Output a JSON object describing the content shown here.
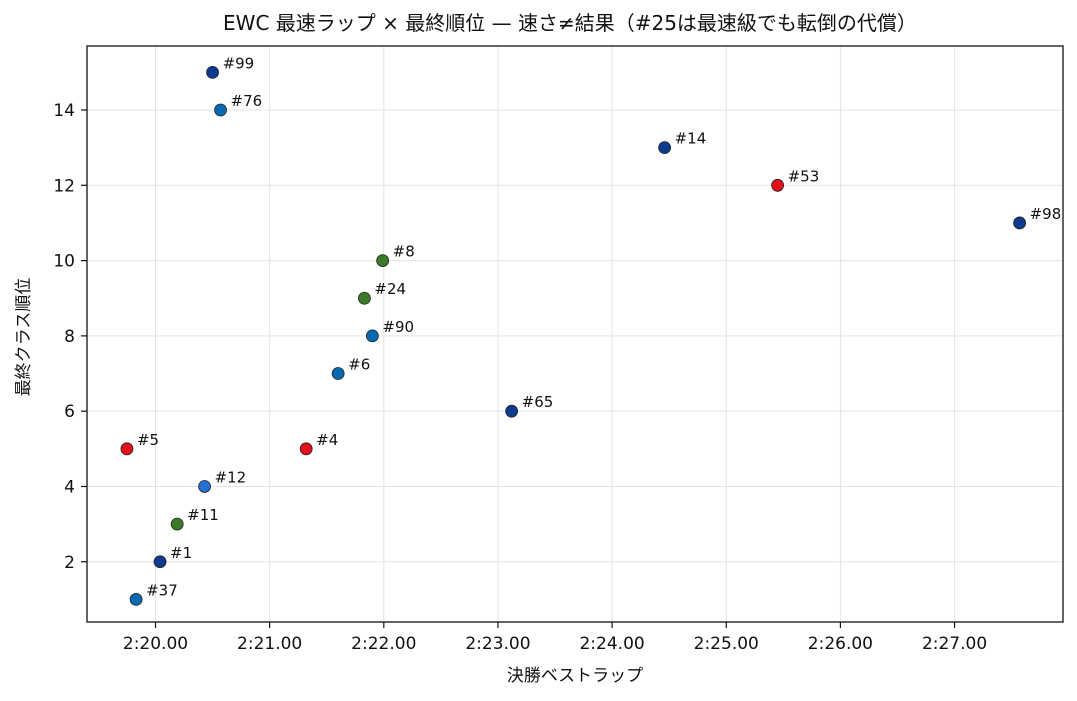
{
  "chart_data": {
    "type": "scatter",
    "title": "EWC 最速ラップ × 最終順位 — 速さ≠結果（#25は最速級でも転倒の代償）",
    "xlabel": "決勝ベストラップ",
    "ylabel": "最終クラス順位",
    "x_unit": "seconds (lap time m:ss.00)",
    "xlim": [
      139.4,
      147.95
    ],
    "ylim": [
      15.7,
      0.4
    ],
    "y_inverted": true,
    "x_ticks": [
      140,
      141,
      142,
      143,
      144,
      145,
      146,
      147
    ],
    "x_tick_labels": [
      "2:20.00",
      "2:21.00",
      "2:22.00",
      "2:23.00",
      "2:24.00",
      "2:25.00",
      "2:26.00",
      "2:27.00"
    ],
    "y_ticks": [
      2,
      4,
      6,
      8,
      10,
      12,
      14
    ],
    "y_tick_labels": [
      "2",
      "4",
      "6",
      "8",
      "10",
      "12",
      "14"
    ],
    "grid": true,
    "points": [
      {
        "label": "#37",
        "x": 139.83,
        "y": 1,
        "color": "#0868b0"
      },
      {
        "label": "#1",
        "x": 140.04,
        "y": 2,
        "color": "#0d3a8c"
      },
      {
        "label": "#11",
        "x": 140.19,
        "y": 3,
        "color": "#3a7a2a"
      },
      {
        "label": "#12",
        "x": 140.43,
        "y": 4,
        "color": "#2470d0"
      },
      {
        "label": "#5",
        "x": 139.75,
        "y": 5,
        "color": "#e3101c"
      },
      {
        "label": "#4",
        "x": 141.32,
        "y": 5,
        "color": "#e3101c"
      },
      {
        "label": "#65",
        "x": 143.12,
        "y": 6,
        "color": "#0d3a8c"
      },
      {
        "label": "#6",
        "x": 141.6,
        "y": 7,
        "color": "#0868b0"
      },
      {
        "label": "#90",
        "x": 141.9,
        "y": 8,
        "color": "#0868b0"
      },
      {
        "label": "#24",
        "x": 141.83,
        "y": 9,
        "color": "#3a7a2a"
      },
      {
        "label": "#8",
        "x": 141.99,
        "y": 10,
        "color": "#3a7a2a"
      },
      {
        "label": "#98",
        "x": 147.57,
        "y": 11,
        "color": "#0d3a8c"
      },
      {
        "label": "#53",
        "x": 145.45,
        "y": 12,
        "color": "#e3101c"
      },
      {
        "label": "#14",
        "x": 144.46,
        "y": 13,
        "color": "#0d3a8c"
      },
      {
        "label": "#76",
        "x": 140.57,
        "y": 14,
        "color": "#0868b0"
      },
      {
        "label": "#99",
        "x": 140.5,
        "y": 15,
        "color": "#0d3a8c"
      }
    ]
  }
}
